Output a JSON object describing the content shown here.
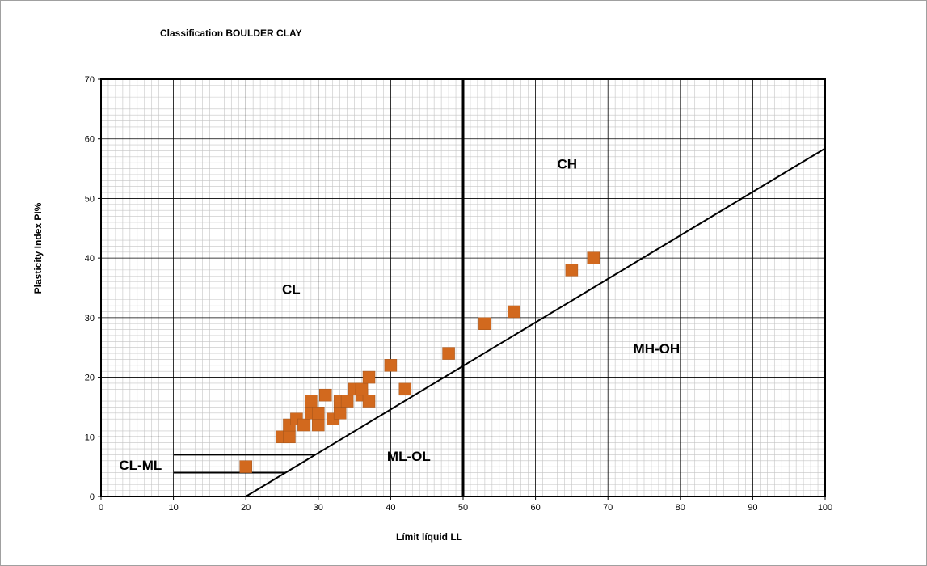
{
  "chart_data": {
    "type": "scatter",
    "title": "Classification BOULDER CLAY",
    "xlabel": "Límit líquid LL",
    "ylabel": "Plasticity Index PI%",
    "xlim": [
      0,
      100
    ],
    "ylim": [
      0,
      70
    ],
    "x_ticks": [
      0,
      10,
      20,
      30,
      40,
      50,
      60,
      70,
      80,
      90,
      100
    ],
    "y_ticks": [
      0,
      10,
      20,
      30,
      40,
      50,
      60,
      70
    ],
    "grid": true,
    "marker_color": "#D2691E",
    "points": [
      {
        "x": 20,
        "y": 5
      },
      {
        "x": 25,
        "y": 10
      },
      {
        "x": 26,
        "y": 10
      },
      {
        "x": 26,
        "y": 12
      },
      {
        "x": 27,
        "y": 13
      },
      {
        "x": 28,
        "y": 12
      },
      {
        "x": 29,
        "y": 14
      },
      {
        "x": 29,
        "y": 16
      },
      {
        "x": 30,
        "y": 12
      },
      {
        "x": 30,
        "y": 14
      },
      {
        "x": 31,
        "y": 17
      },
      {
        "x": 32,
        "y": 13
      },
      {
        "x": 33,
        "y": 14
      },
      {
        "x": 33,
        "y": 16
      },
      {
        "x": 34,
        "y": 16
      },
      {
        "x": 35,
        "y": 18
      },
      {
        "x": 36,
        "y": 17
      },
      {
        "x": 36,
        "y": 18
      },
      {
        "x": 37,
        "y": 16
      },
      {
        "x": 37,
        "y": 20
      },
      {
        "x": 40,
        "y": 22
      },
      {
        "x": 42,
        "y": 18
      },
      {
        "x": 48,
        "y": 24
      },
      {
        "x": 53,
        "y": 29
      },
      {
        "x": 57,
        "y": 31
      },
      {
        "x": 65,
        "y": 38
      },
      {
        "x": 68,
        "y": 40
      }
    ],
    "reference_lines": [
      {
        "name": "A-line",
        "x1": 20,
        "y1": 0,
        "x2": 100,
        "y2": 58.4
      },
      {
        "name": "LL=50",
        "x1": 50,
        "y1": 0,
        "x2": 50,
        "y2": 70
      },
      {
        "name": "PI=7",
        "x1": 10,
        "y1": 7,
        "x2": 29.6,
        "y2": 7
      },
      {
        "name": "PI=4",
        "x1": 10,
        "y1": 4,
        "x2": 25.5,
        "y2": 4
      }
    ],
    "region_labels": [
      {
        "text": "CH",
        "x": 63,
        "y": 55
      },
      {
        "text": "CL",
        "x": 25,
        "y": 34
      },
      {
        "text": "MH-OH",
        "x": 73.5,
        "y": 24
      },
      {
        "text": "ML-OL",
        "x": 39.5,
        "y": 6
      },
      {
        "text": "CL-ML",
        "x": 2.5,
        "y": 4.5
      }
    ]
  }
}
